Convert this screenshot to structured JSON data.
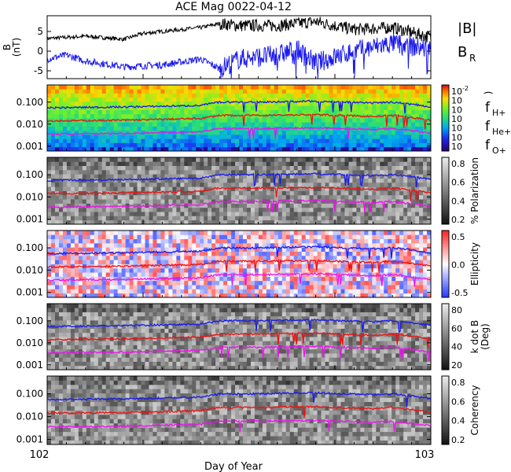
{
  "title": "ACE Mag 0022-04-12",
  "xlabel": "Day of Year",
  "x_ticks": [
    "102",
    "103"
  ],
  "chart_data": [
    {
      "type": "line",
      "name": "magnetic-field",
      "ylabel": "B (nT)",
      "ylabel_main": "B",
      "ylabel_unit": "(nT)",
      "ylim": [
        -7,
        9
      ],
      "y_ticks": [
        "5",
        "0",
        "-5"
      ],
      "legend": [
        {
          "label": "|B|",
          "color": "#000000"
        },
        {
          "label_main": "B",
          "label_sub": "R",
          "color": "#1a1aee"
        }
      ],
      "series": [
        {
          "id": "Bmag",
          "color": "#000000",
          "x": [
            102.0,
            102.1,
            102.2,
            102.25,
            102.3,
            102.4,
            102.45,
            102.5,
            102.6,
            102.7,
            102.8,
            102.9,
            103.0
          ],
          "y": [
            3.2,
            3.8,
            3.0,
            4.5,
            5.0,
            6.0,
            7.0,
            6.5,
            6.5,
            7.5,
            5.5,
            6.0,
            3.5
          ]
        },
        {
          "id": "BR",
          "color": "#1a1aee",
          "x": [
            102.0,
            102.05,
            102.1,
            102.2,
            102.3,
            102.4,
            102.45,
            102.5,
            102.6,
            102.65,
            102.7,
            102.8,
            102.9,
            103.0
          ],
          "y": [
            -2.0,
            -1.0,
            -2.5,
            -4.0,
            -3.5,
            -2.0,
            -4.5,
            -2.0,
            -1.0,
            0.5,
            -3.0,
            0.0,
            2.0,
            0.5
          ]
        }
      ]
    },
    {
      "type": "heatmap",
      "name": "power-spectrum",
      "ylim": [
        0.0006,
        0.6
      ],
      "y_scale": "log",
      "y_ticks": [
        "0.100",
        "0.010",
        "0.001"
      ],
      "colorbar": {
        "scheme": "rainbow",
        "labels": [
          "10",
          "10",
          "10",
          "10",
          "10",
          "10",
          "10"
        ],
        "label_exponents": [
          "-2",
          "",
          "",
          "",
          "",
          "",
          ""
        ],
        "label": ")"
      },
      "legend": [
        {
          "label_main": "f",
          "label_sub": "H+",
          "color": "#1a1aee"
        },
        {
          "label_main": "f",
          "label_sub": "He+",
          "color": "#ee1111"
        },
        {
          "label_main": "f",
          "label_sub": "O+",
          "color": "#ee11ee"
        }
      ]
    },
    {
      "type": "heatmap",
      "name": "polarization",
      "ylim": [
        0.0006,
        0.6
      ],
      "y_scale": "log",
      "y_ticks": [
        "0.100",
        "0.010",
        "0.001"
      ],
      "colorbar": {
        "scheme": "gray",
        "labels": [
          "0.8",
          "0.6",
          "0.4",
          "0.2"
        ],
        "label": "% Polarization"
      }
    },
    {
      "type": "heatmap",
      "name": "ellipticity",
      "ylim": [
        0.0006,
        0.6
      ],
      "y_scale": "log",
      "y_ticks": [
        "0.100",
        "0.010",
        "0.001"
      ],
      "colorbar": {
        "scheme": "bwr",
        "labels": [
          "0.5",
          "0.0",
          "-0.5"
        ],
        "label": "Ellipticity"
      }
    },
    {
      "type": "heatmap",
      "name": "k-dot-b",
      "ylim": [
        0.0006,
        0.6
      ],
      "y_scale": "log",
      "y_ticks": [
        "0.100",
        "0.010",
        "0.001"
      ],
      "colorbar": {
        "scheme": "gray",
        "labels": [
          "80",
          "60",
          "40",
          "20"
        ],
        "label": "k dot B",
        "label2": "(Deg)"
      }
    },
    {
      "type": "heatmap",
      "name": "coherency",
      "ylim": [
        0.0006,
        0.6
      ],
      "y_scale": "log",
      "y_ticks": [
        "0.100",
        "0.010",
        "0.001"
      ],
      "colorbar": {
        "scheme": "gray",
        "labels": [
          "0.8",
          "0.6",
          "0.4",
          "0.2"
        ],
        "label": "Coherency"
      }
    }
  ],
  "gyrofrequency_lines": {
    "x": [
      102.0,
      102.2,
      102.4,
      102.45,
      102.55,
      102.7,
      102.85,
      102.9,
      103.0
    ],
    "fH": [
      0.055,
      0.06,
      0.07,
      0.1,
      0.1,
      0.11,
      0.09,
      0.1,
      0.06
    ],
    "fHe": [
      0.014,
      0.015,
      0.018,
      0.025,
      0.025,
      0.027,
      0.022,
      0.025,
      0.015
    ],
    "fO": [
      0.0035,
      0.0038,
      0.0045,
      0.0062,
      0.0062,
      0.0068,
      0.0056,
      0.0062,
      0.0038
    ]
  }
}
